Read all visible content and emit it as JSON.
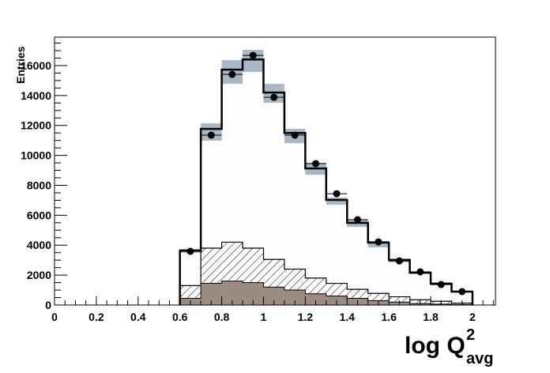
{
  "chart_data": {
    "type": "bar",
    "ylabel": "Entries",
    "xlabel_main": "log Q",
    "xlabel_sup": "2",
    "xlabel_sub": "avg",
    "xlim": [
      0,
      2.11
    ],
    "ylim": [
      0,
      17900
    ],
    "grid": false,
    "xticks": [
      "0",
      "0.2",
      "0.4",
      "0.6",
      "0.8",
      "1",
      "1.2",
      "1.4",
      "1.6",
      "1.8",
      "2"
    ],
    "yticks": [
      "0",
      "2000",
      "4000",
      "6000",
      "8000",
      "10000",
      "12000",
      "14000",
      "16000"
    ],
    "bin_edges": [
      0.6,
      0.7,
      0.8,
      0.9,
      1.0,
      1.1,
      1.2,
      1.3,
      1.4,
      1.5,
      1.6,
      1.7,
      1.8,
      1.9,
      2.0
    ],
    "series": [
      {
        "kind": "histogram-total",
        "color": "#000000",
        "fill": "#fdfdfd",
        "values": [
          3640,
          11770,
          15730,
          16410,
          14200,
          11500,
          9130,
          7020,
          5490,
          4170,
          3010,
          2160,
          1420,
          900
        ]
      },
      {
        "kind": "hatched-component",
        "color": "#000000",
        "values": [
          1300,
          3800,
          4200,
          3800,
          3050,
          2400,
          1800,
          1450,
          1050,
          780,
          550,
          350,
          250,
          130
        ]
      },
      {
        "kind": "filled-component",
        "color": "#9c8b80",
        "values": [
          450,
          1450,
          1600,
          1500,
          1200,
          1000,
          750,
          600,
          450,
          300,
          200,
          100,
          60,
          30
        ]
      },
      {
        "kind": "systematic-band",
        "color": "#a9b8c6",
        "low": [
          3480,
          10980,
          14780,
          15570,
          13510,
          10820,
          8710,
          6700,
          5220,
          3850,
          2850,
          2100,
          1320,
          860
        ],
        "high": [
          3750,
          12140,
          16360,
          17050,
          14780,
          11770,
          9500,
          7180,
          5700,
          4270,
          3110,
          2220,
          1530,
          940
        ]
      },
      {
        "kind": "data-points",
        "color": "#000000",
        "x": [
          0.65,
          0.75,
          0.85,
          0.95,
          1.05,
          1.15,
          1.25,
          1.35,
          1.45,
          1.55,
          1.65,
          1.75,
          1.85,
          1.95
        ],
        "values": [
          3590,
          11350,
          15410,
          16680,
          13880,
          11350,
          9450,
          7440,
          5700,
          4220,
          2950,
          2220,
          1370,
          900
        ]
      }
    ]
  }
}
